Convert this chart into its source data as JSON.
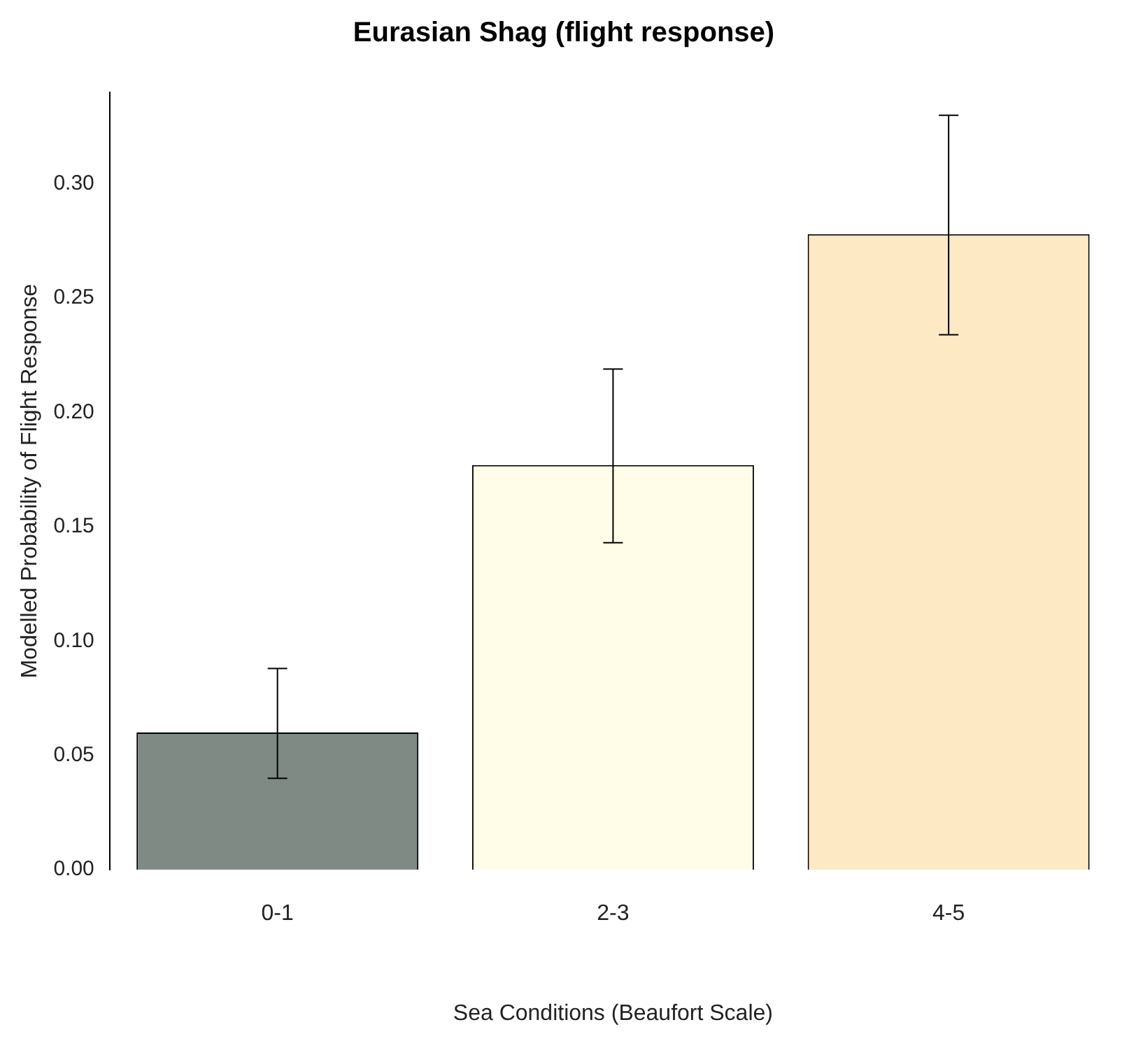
{
  "chart_data": {
    "type": "bar",
    "title": "Eurasian Shag (flight response)",
    "xlabel": "Sea Conditions (Beaufort Scale)",
    "ylabel": "Modelled Probability of Flight Response",
    "categories": [
      "0-1",
      "2-3",
      "4-5"
    ],
    "values": [
      0.06,
      0.177,
      0.278
    ],
    "colors": [
      "#7f8a85",
      "#fffde8",
      "#fde9c4"
    ],
    "errors": [
      [
        0.04,
        0.088
      ],
      [
        0.143,
        0.219
      ],
      [
        0.234,
        0.33
      ]
    ],
    "ylim": [
      0,
      0.34
    ],
    "yticks": [
      {
        "value": 0,
        "label": "0.00"
      },
      {
        "value": 0.05,
        "label": "0.05"
      },
      {
        "value": 0.1,
        "label": "0.10"
      },
      {
        "value": 0.15,
        "label": "0.15"
      },
      {
        "value": 0.2,
        "label": "0.20"
      },
      {
        "value": 0.25,
        "label": "0.25"
      },
      {
        "value": 0.3,
        "label": "0.30"
      }
    ],
    "grid": false
  }
}
